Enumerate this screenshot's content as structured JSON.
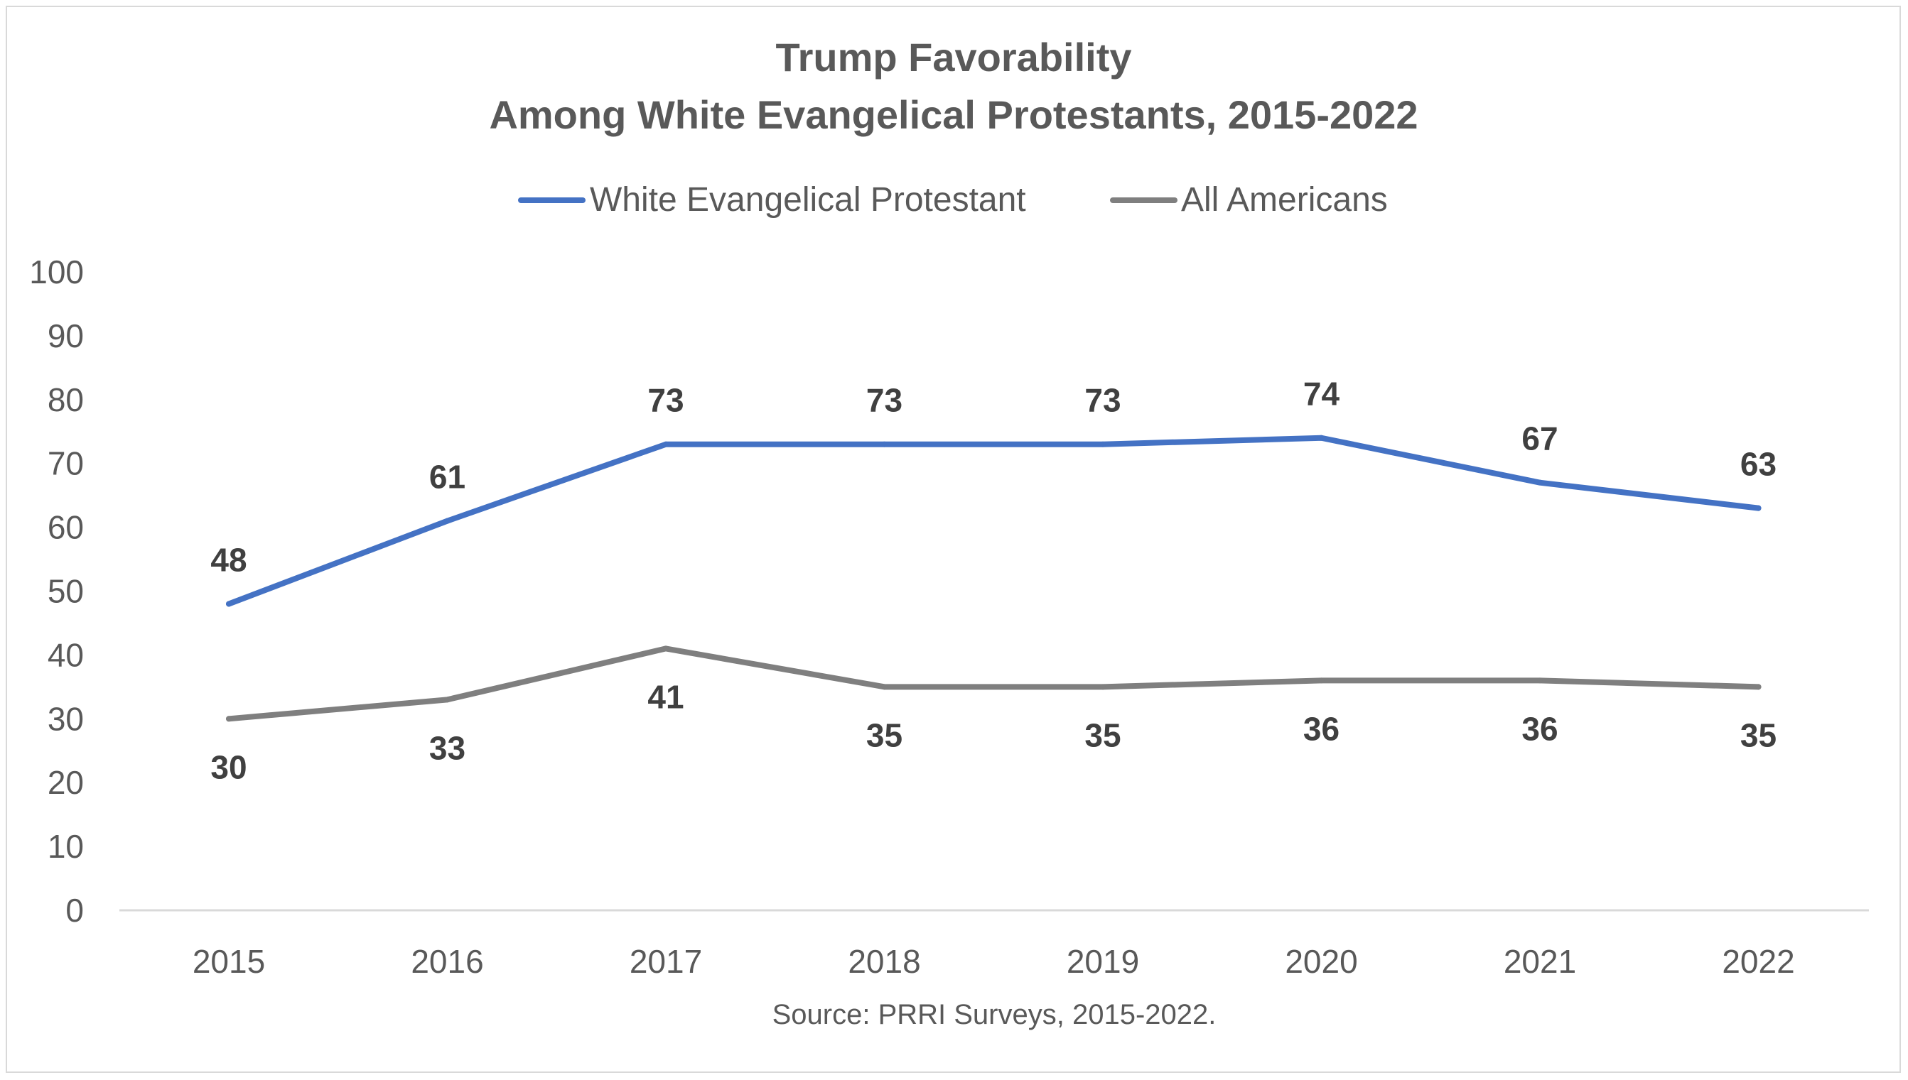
{
  "chart_data": {
    "type": "line",
    "title": [
      "Trump Favorability",
      "Among White Evangelical Protestants, 2015-2022"
    ],
    "categories": [
      "2015",
      "2016",
      "2017",
      "2018",
      "2019",
      "2020",
      "2021",
      "2022"
    ],
    "series": [
      {
        "name": "White Evangelical Protestant",
        "color": "#4472c4",
        "values": [
          48,
          61,
          73,
          73,
          73,
          74,
          67,
          63
        ],
        "label_position": "above"
      },
      {
        "name": "All Americans",
        "color": "#7f7f7f",
        "values": [
          30,
          33,
          41,
          35,
          35,
          36,
          36,
          35
        ],
        "label_position": "below"
      }
    ],
    "ylim": [
      0,
      100
    ],
    "yticks": [
      "0",
      "10",
      "20",
      "30",
      "40",
      "50",
      "60",
      "70",
      "80",
      "90",
      "100"
    ],
    "grid": false,
    "legend": "top",
    "source": "Source: PRRI Surveys, 2015-2022."
  }
}
